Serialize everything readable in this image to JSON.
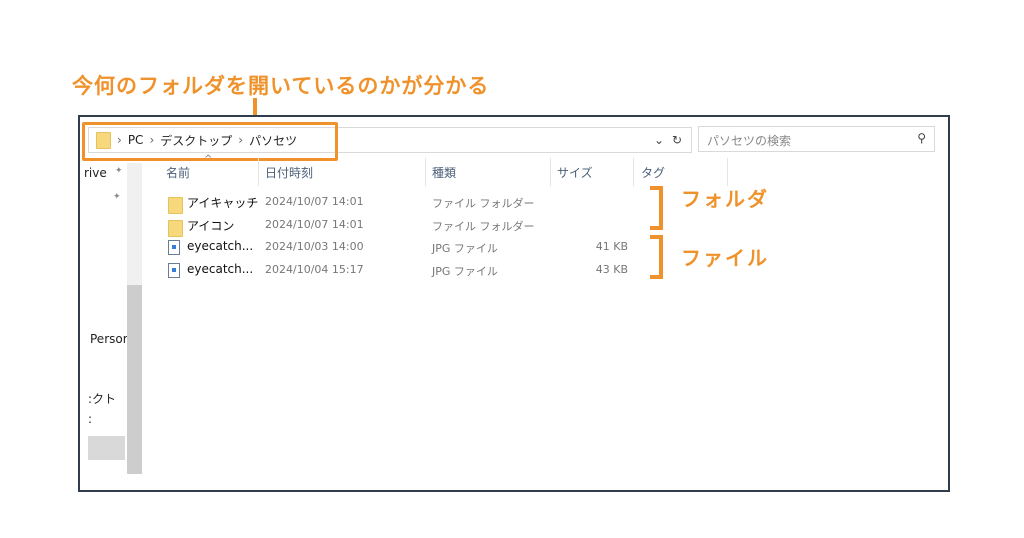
{
  "annotations": {
    "title": "今何のフォルダを開いているのかが分かる",
    "folders": "フォルダ",
    "files": "ファイル",
    "color": "#f0922b"
  },
  "address": {
    "crumbs": [
      "PC",
      "デスクトップ",
      "パソセツ"
    ],
    "separator": "›"
  },
  "search": {
    "placeholder": "パソセツの検索"
  },
  "nav": {
    "items": [
      "rive",
      "Persor",
      ":クト",
      ":"
    ]
  },
  "columns": [
    "名前",
    "日付時刻",
    "種類",
    "サイズ",
    "タグ"
  ],
  "rows": [
    {
      "name": "アイキャッチ",
      "date": "2024/10/07 14:01",
      "type": "ファイル フォルダー",
      "size": "",
      "icon": "folder-icon"
    },
    {
      "name": "アイコン",
      "date": "2024/10/07 14:01",
      "type": "ファイル フォルダー",
      "size": "",
      "icon": "folder-icon"
    },
    {
      "name": "eyecatch...",
      "date": "2024/10/03 14:00",
      "type": "JPG ファイル",
      "size": "41 KB",
      "icon": "image-file-icon"
    },
    {
      "name": "eyecatch...",
      "date": "2024/10/04 15:17",
      "type": "JPG ファイル",
      "size": "43 KB",
      "icon": "image-file-icon"
    }
  ]
}
